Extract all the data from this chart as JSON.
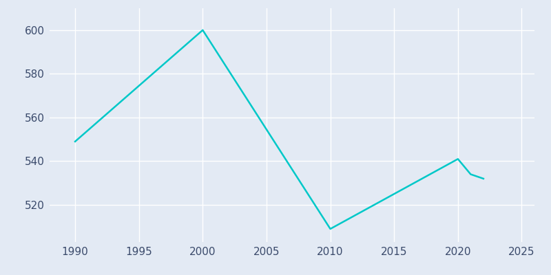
{
  "years": [
    1990,
    2000,
    2010,
    2020,
    2021,
    2022
  ],
  "population": [
    549,
    600,
    509,
    541,
    534,
    532
  ],
  "line_color": "#00C8C8",
  "bg_color": "#E3EAF4",
  "plot_bg_color": "#E3EAF4",
  "grid_color": "#FFFFFF",
  "xlim": [
    1988,
    2026
  ],
  "ylim": [
    503,
    610
  ],
  "xticks": [
    1990,
    1995,
    2000,
    2005,
    2010,
    2015,
    2020,
    2025
  ],
  "yticks": [
    520,
    540,
    560,
    580,
    600
  ],
  "linewidth": 1.8,
  "tick_color": "#3A4A6B",
  "tick_fontsize": 11
}
